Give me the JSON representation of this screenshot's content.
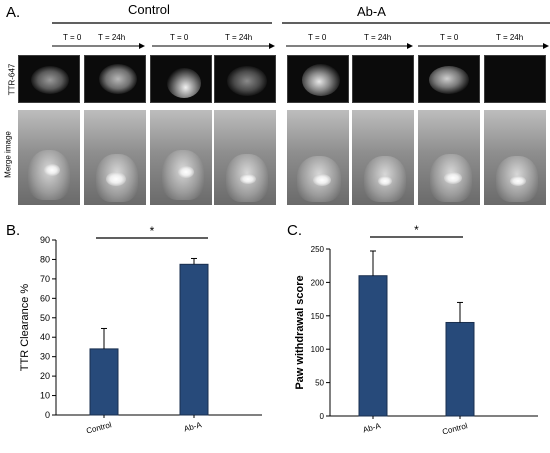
{
  "panel_a": {
    "letter": "A.",
    "groups": [
      {
        "title": "Control"
      },
      {
        "title": "Ab-A"
      }
    ],
    "time_labels": [
      "T = 0",
      "T = 24h",
      "T = 0",
      "T = 24h",
      "T = 0",
      "T = 24h",
      "T = 0",
      "T = 24h"
    ],
    "row_labels": [
      "TTR-647",
      "Merge image"
    ]
  },
  "panel_b": {
    "letter": "B."
  },
  "panel_c": {
    "letter": "C."
  },
  "chart_data": [
    {
      "type": "bar",
      "categories": [
        "Control",
        "Ab-A"
      ],
      "values": [
        34,
        77.5
      ],
      "errors": [
        10.5,
        3
      ],
      "ylabel": "TTR Clearance %",
      "ylim": [
        0,
        90
      ],
      "yticks": [
        0,
        10,
        20,
        30,
        40,
        50,
        60,
        70,
        80,
        90
      ],
      "significance": "*",
      "bar_color": "#274a7a"
    },
    {
      "type": "bar",
      "categories": [
        "Ab-A",
        "Control"
      ],
      "values": [
        210,
        140
      ],
      "errors": [
        37,
        30
      ],
      "ylabel": "Paw withdrawal score",
      "ylim": [
        0,
        250
      ],
      "yticks": [
        0,
        50,
        100,
        150,
        200,
        250
      ],
      "significance": "*",
      "bar_color": "#274a7a"
    }
  ]
}
